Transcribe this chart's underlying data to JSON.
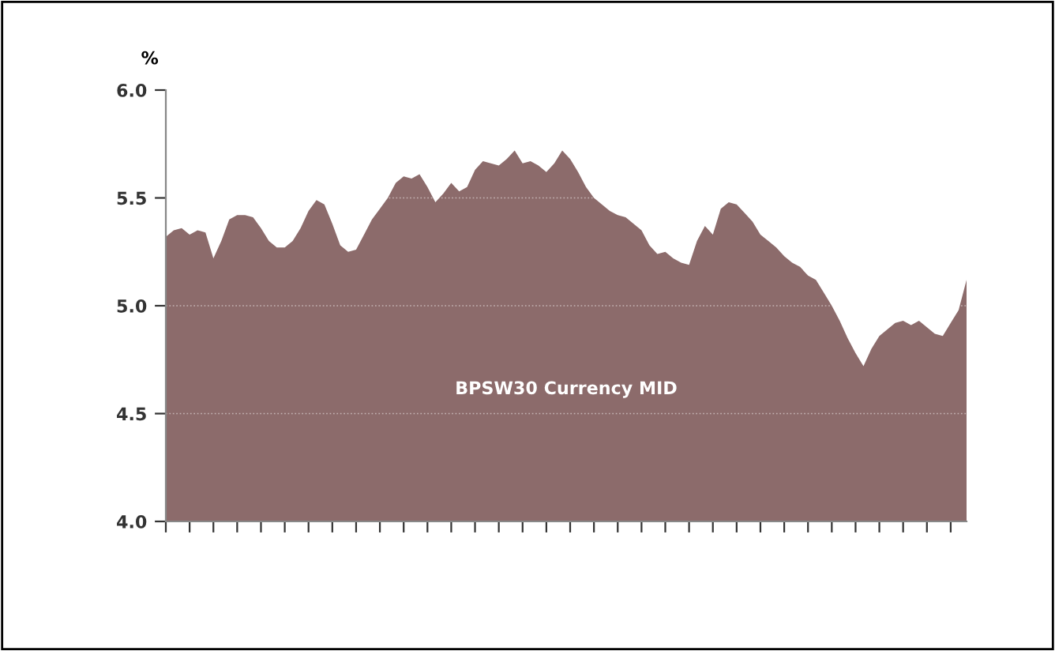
{
  "chart_data": {
    "type": "area",
    "ylabel": "%",
    "ylim": [
      4.0,
      6.0
    ],
    "yticks": [
      {
        "value": 4.0,
        "label": "4.0"
      },
      {
        "value": 4.5,
        "label": "4.5"
      },
      {
        "value": 5.0,
        "label": "5.0"
      },
      {
        "value": 5.5,
        "label": "5.5"
      },
      {
        "value": 6.0,
        "label": "6.0"
      }
    ],
    "grid": "y",
    "legend": false,
    "tick_labels": "y",
    "categories": [
      null,
      null,
      null,
      null,
      null,
      null,
      null,
      null,
      null,
      null,
      null,
      null,
      null,
      null,
      null,
      null,
      null,
      null,
      null,
      null,
      null,
      null,
      null,
      null,
      null,
      null,
      null,
      null,
      null,
      null,
      null,
      null,
      null,
      null,
      null,
      null,
      null,
      null,
      null,
      null,
      null,
      null,
      null,
      null,
      null,
      null,
      null,
      null,
      null,
      null,
      null,
      null,
      null,
      null,
      null,
      null,
      null,
      null,
      null,
      null,
      null,
      null,
      null,
      null,
      null,
      null,
      null,
      null,
      null,
      null,
      null,
      null,
      null,
      null,
      null,
      null,
      null,
      null,
      null,
      null,
      null,
      null,
      null,
      null,
      null,
      null,
      null,
      null,
      null,
      null,
      null,
      null,
      null,
      null,
      null,
      null,
      null,
      null,
      null,
      null,
      null,
      null
    ],
    "series": [
      {
        "name": "BPSW30 Currency MID",
        "color": "#8c6b6b",
        "values": [
          5.32,
          5.35,
          5.36,
          5.33,
          5.35,
          5.34,
          5.22,
          5.3,
          5.4,
          5.42,
          5.42,
          5.41,
          5.36,
          5.3,
          5.27,
          5.27,
          5.3,
          5.36,
          5.44,
          5.49,
          5.47,
          5.38,
          5.28,
          5.25,
          5.26,
          5.33,
          5.4,
          5.45,
          5.5,
          5.57,
          5.6,
          5.59,
          5.61,
          5.55,
          5.48,
          5.52,
          5.57,
          5.53,
          5.55,
          5.63,
          5.67,
          5.66,
          5.65,
          5.68,
          5.72,
          5.66,
          5.67,
          5.65,
          5.62,
          5.66,
          5.72,
          5.68,
          5.62,
          5.55,
          5.5,
          5.47,
          5.44,
          5.42,
          5.41,
          5.38,
          5.35,
          5.28,
          5.24,
          5.25,
          5.22,
          5.2,
          5.19,
          5.3,
          5.37,
          5.33,
          5.45,
          5.48,
          5.47,
          5.43,
          5.39,
          5.33,
          5.3,
          5.27,
          5.23,
          5.2,
          5.18,
          5.14,
          5.12,
          5.06,
          5.0,
          4.93,
          4.85,
          4.78,
          4.72,
          4.8,
          4.86,
          4.89,
          4.92,
          4.93,
          4.91,
          4.93,
          4.9,
          4.87,
          4.86,
          4.92,
          4.98,
          5.12
        ]
      }
    ]
  }
}
